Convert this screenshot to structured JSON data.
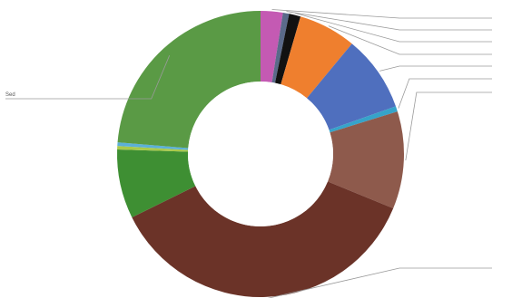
{
  "chart_data": {
    "type": "pie",
    "donut": true,
    "legend": "none",
    "slices": [
      {
        "value": 2.5,
        "color": "#c45ab3",
        "label": "",
        "callout": "right"
      },
      {
        "value": 0.7,
        "color": "#5a6a8a",
        "label": "",
        "callout": "right"
      },
      {
        "value": 1.3,
        "color": "#111111",
        "label": "",
        "callout": "right"
      },
      {
        "value": 6.5,
        "color": "#ef7f2e",
        "label": "",
        "callout": "right"
      },
      {
        "value": 8.6,
        "color": "#4f6fbe",
        "label": "",
        "callout": "right"
      },
      {
        "value": 0.6,
        "color": "#36a3c9",
        "label": "",
        "callout": "right"
      },
      {
        "value": 11.0,
        "color": "#8e5a4c",
        "label": "",
        "callout": "right"
      },
      {
        "value": 36.5,
        "color": "#6b3328",
        "label": "",
        "callout": "right"
      },
      {
        "value": 7.8,
        "color": "#3e8f33",
        "label": "",
        "callout": "none"
      },
      {
        "value": 0.4,
        "color": "#a9c94a",
        "label": "",
        "callout": "none"
      },
      {
        "value": 0.4,
        "color": "#5bb0d8",
        "label": "",
        "callout": "none"
      },
      {
        "value": 23.7,
        "color": "#5a9a45",
        "label": "Sed",
        "callout": "left"
      }
    ]
  }
}
